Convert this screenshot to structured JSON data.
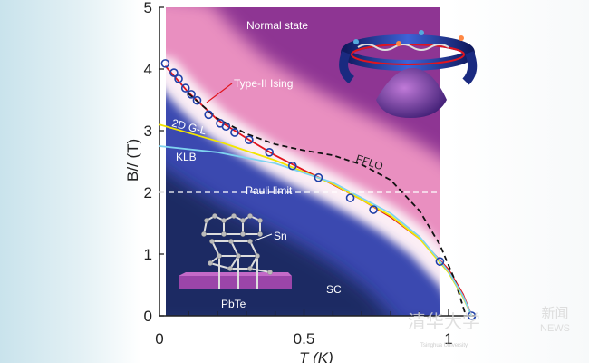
{
  "chart_data": {
    "type": "scatter",
    "xlabel": "T (K)",
    "ylabel": "B// (T)",
    "xlim": [
      0,
      1.1
    ],
    "ylim": [
      0,
      5
    ],
    "xticks": [
      "0",
      "0.5",
      "1"
    ],
    "xtick_values": [
      0,
      0.5,
      1
    ],
    "yticks": [
      "0",
      "1",
      "2",
      "3",
      "4",
      "5"
    ],
    "ytick_values": [
      0,
      1,
      2,
      3,
      4,
      5
    ],
    "grid": false,
    "points": {
      "x": [
        0.02,
        0.05,
        0.066,
        0.09,
        0.11,
        0.13,
        0.17,
        0.21,
        0.23,
        0.26,
        0.31,
        0.38,
        0.46,
        0.55,
        0.66,
        0.74,
        0.97,
        1.08
      ],
      "y": [
        4.09,
        3.94,
        3.84,
        3.69,
        3.59,
        3.49,
        3.26,
        3.12,
        3.07,
        2.97,
        2.85,
        2.65,
        2.43,
        2.24,
        1.91,
        1.72,
        0.88,
        0
      ]
    },
    "series": [
      {
        "name": "Type-II Ising",
        "color": "#e0151f",
        "style": "solid",
        "x": [
          0.02,
          0.1,
          0.2,
          0.3,
          0.4,
          0.5,
          0.6,
          0.7,
          0.8,
          0.9,
          1.0,
          1.05,
          1.08
        ],
        "y": [
          4.05,
          3.62,
          3.18,
          2.88,
          2.6,
          2.36,
          2.13,
          1.88,
          1.6,
          1.25,
          0.75,
          0.35,
          0
        ]
      },
      {
        "name": "FFLO",
        "color": "#111111",
        "style": "dashed",
        "x": [
          0.1,
          0.2,
          0.3,
          0.4,
          0.5,
          0.6,
          0.7,
          0.8,
          0.9,
          0.97,
          1.02,
          1.06
        ],
        "y": [
          3.6,
          3.2,
          2.95,
          2.78,
          2.68,
          2.6,
          2.45,
          2.2,
          1.7,
          1.15,
          0.6,
          0
        ]
      },
      {
        "name": "2D G-L",
        "color": "#f2e600",
        "style": "solid",
        "x": [
          0,
          0.2,
          0.4,
          0.6,
          0.8,
          0.9,
          1.0,
          1.05,
          1.08
        ],
        "y": [
          3.1,
          2.83,
          2.52,
          2.14,
          1.62,
          1.25,
          0.7,
          0.3,
          0
        ]
      },
      {
        "name": "KLB",
        "color": "#7fd3f0",
        "style": "solid",
        "x": [
          0,
          0.2,
          0.4,
          0.6,
          0.8,
          0.9,
          1.0,
          1.05,
          1.08
        ],
        "y": [
          2.75,
          2.65,
          2.47,
          2.16,
          1.66,
          1.28,
          0.72,
          0.32,
          0
        ]
      },
      {
        "name": "Pauli limit",
        "color": "#ffffff",
        "style": "dashed",
        "x": [
          0,
          1.1
        ],
        "y": [
          2,
          2
        ]
      }
    ],
    "annotations": [
      "Normal state",
      "Type-II Ising",
      "2D G-L",
      "KLB",
      "FFLO",
      "Pauli limit",
      "SC",
      "Sn",
      "PbTe"
    ],
    "colors": {
      "normal": "#8e3593",
      "pink": "#f2a6c8",
      "sc": "#1b2a63",
      "marker": "#1f3fa8"
    }
  },
  "watermark": {
    "text": "清华大学",
    "sub": "Tsinghua University",
    "news_cn": "新闻",
    "news_en": "NEWS"
  }
}
